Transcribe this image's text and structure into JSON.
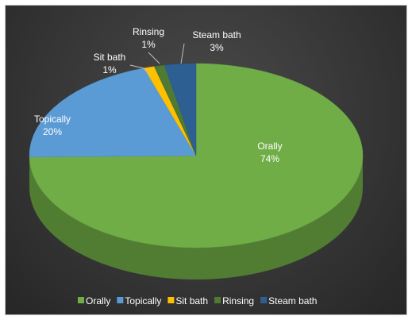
{
  "chart_data": {
    "type": "pie",
    "title": "",
    "three_d": true,
    "legend_position": "bottom",
    "series": [
      {
        "values": [
          {
            "label": "Orally",
            "value": 74,
            "display": "74%"
          },
          {
            "label": "Topically",
            "value": 20,
            "display": "20%"
          },
          {
            "label": "Sit bath",
            "value": 1,
            "display": "1%"
          },
          {
            "label": "Rinsing",
            "value": 1,
            "display": "1%"
          },
          {
            "label": "Steam bath",
            "value": 3,
            "display": "3%"
          }
        ]
      }
    ],
    "colors": {
      "Orally": "#70ad47",
      "Topically": "#5b9bd5",
      "Sit bath": "#ffc000",
      "Rinsing": "#4e7a34",
      "Steam bath": "#2e5f93"
    },
    "background": "#3a3a3a"
  }
}
